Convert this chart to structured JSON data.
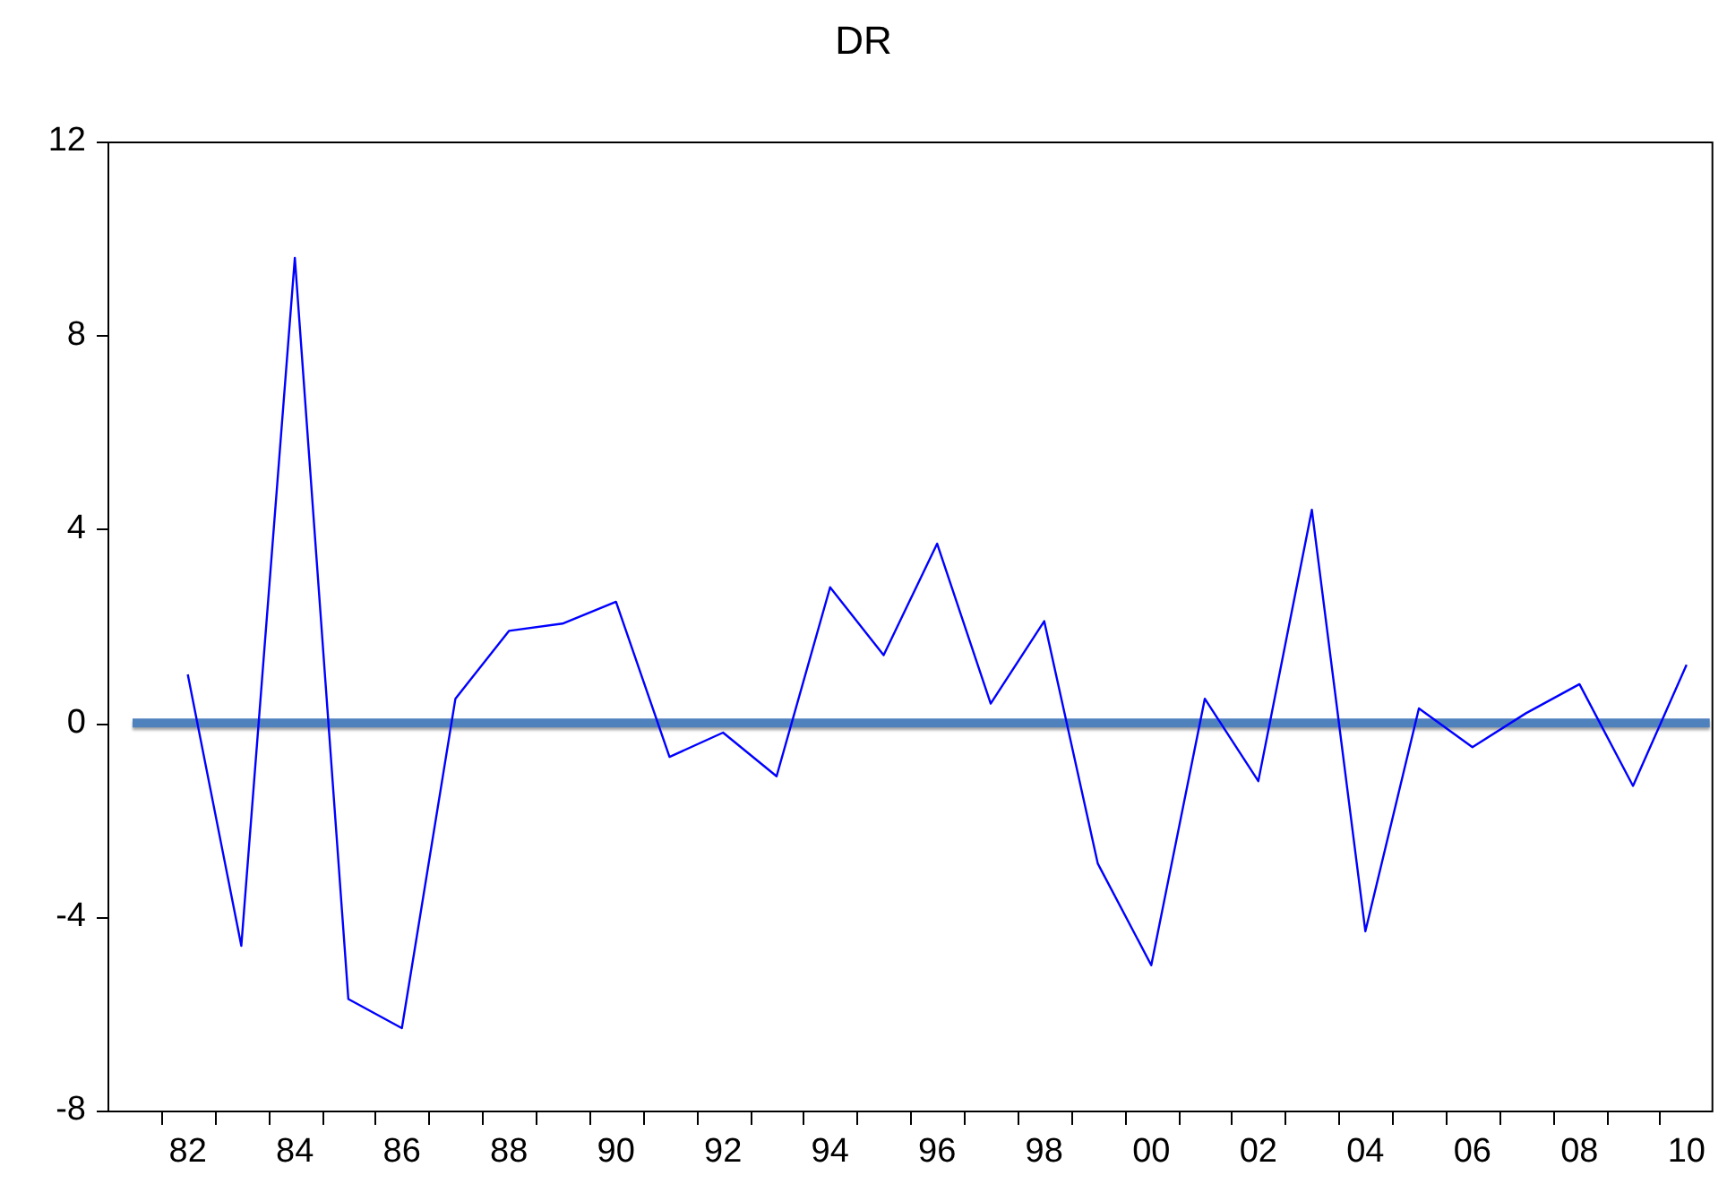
{
  "chart_data": {
    "type": "line",
    "title": "DR",
    "x": [
      1982,
      1983,
      1984,
      1985,
      1986,
      1987,
      1988,
      1989,
      1990,
      1991,
      1992,
      1993,
      1994,
      1995,
      1996,
      1997,
      1998,
      1999,
      2000,
      2001,
      2002,
      2003,
      2004,
      2005,
      2006,
      2007,
      2008,
      2009,
      2010
    ],
    "series": [
      {
        "color": "#0000ff",
        "values": [
          1.0,
          -4.6,
          9.6,
          -5.7,
          -6.3,
          0.5,
          1.9,
          2.05,
          2.5,
          -0.7,
          -0.2,
          -1.1,
          2.8,
          1.4,
          3.7,
          0.4,
          2.1,
          -2.9,
          -5.0,
          0.5,
          -1.2,
          4.4,
          -4.3,
          0.3,
          -0.5,
          0.2,
          0.8,
          -1.3,
          1.2
        ]
      }
    ],
    "xlim": [
      1980.5,
      2010.5
    ],
    "xticks": [
      {
        "value": 1981.5,
        "label": null
      },
      {
        "value": 1982,
        "label": "82"
      },
      {
        "value": 1982.5,
        "label": null
      },
      {
        "value": 1983.5,
        "label": null
      },
      {
        "value": 1984,
        "label": "84"
      },
      {
        "value": 1984.5,
        "label": null
      },
      {
        "value": 1985.5,
        "label": null
      },
      {
        "value": 1986,
        "label": "86"
      },
      {
        "value": 1986.5,
        "label": null
      },
      {
        "value": 1987.5,
        "label": null
      },
      {
        "value": 1988,
        "label": "88"
      },
      {
        "value": 1988.5,
        "label": null
      },
      {
        "value": 1989.5,
        "label": null
      },
      {
        "value": 1990,
        "label": "90"
      },
      {
        "value": 1990.5,
        "label": null
      },
      {
        "value": 1991.5,
        "label": null
      },
      {
        "value": 1992,
        "label": "92"
      },
      {
        "value": 1992.5,
        "label": null
      },
      {
        "value": 1993.5,
        "label": null
      },
      {
        "value": 1994,
        "label": "94"
      },
      {
        "value": 1994.5,
        "label": null
      },
      {
        "value": 1995.5,
        "label": null
      },
      {
        "value": 1996,
        "label": "96"
      },
      {
        "value": 1996.5,
        "label": null
      },
      {
        "value": 1997.5,
        "label": null
      },
      {
        "value": 1998,
        "label": "98"
      },
      {
        "value": 1998.5,
        "label": null
      },
      {
        "value": 1999.5,
        "label": null
      },
      {
        "value": 2000,
        "label": "00"
      },
      {
        "value": 2000.5,
        "label": null
      },
      {
        "value": 2001.5,
        "label": null
      },
      {
        "value": 2002,
        "label": "02"
      },
      {
        "value": 2002.5,
        "label": null
      },
      {
        "value": 2003.5,
        "label": null
      },
      {
        "value": 2004,
        "label": "04"
      },
      {
        "value": 2004.5,
        "label": null
      },
      {
        "value": 2005.5,
        "label": null
      },
      {
        "value": 2006,
        "label": "06"
      },
      {
        "value": 2006.5,
        "label": null
      },
      {
        "value": 2007.5,
        "label": null
      },
      {
        "value": 2008,
        "label": "08"
      },
      {
        "value": 2008.5,
        "label": null
      },
      {
        "value": 2009.5,
        "label": null
      },
      {
        "value": 2010,
        "label": "10"
      }
    ],
    "ylim": [
      -8,
      12
    ],
    "yticks": [
      -8,
      -4,
      0,
      4,
      8,
      12
    ],
    "ref_lines": [
      {
        "axis": "y",
        "value": 0,
        "color": "#4f81bd"
      }
    ],
    "grid": false,
    "legend": false,
    "marker": "none",
    "line_style": "solid"
  }
}
